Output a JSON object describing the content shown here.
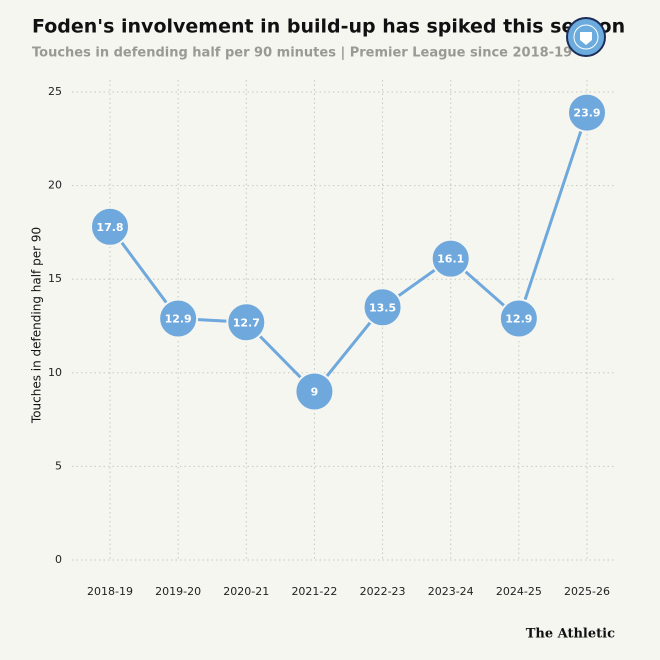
{
  "chart_data": {
    "type": "line",
    "title": "Foden's involvement in build-up has spiked this season",
    "subtitle": "Touches in defending half per 90 minutes | Premier League since 2018-19",
    "y_label": "Touches in defending half per 90",
    "categories": [
      "2018-19",
      "2019-20",
      "2020-21",
      "2021-22",
      "2022-23",
      "2023-24",
      "2024-25",
      "2025-26"
    ],
    "values": [
      17.8,
      12.9,
      12.7,
      9,
      13.5,
      16.1,
      12.9,
      23.9
    ],
    "color": "#6fa8dc",
    "ylim": [
      0,
      25
    ],
    "yticks": [
      0,
      5,
      10,
      15,
      20,
      25
    ],
    "grid": true,
    "source": "The Athletic"
  }
}
